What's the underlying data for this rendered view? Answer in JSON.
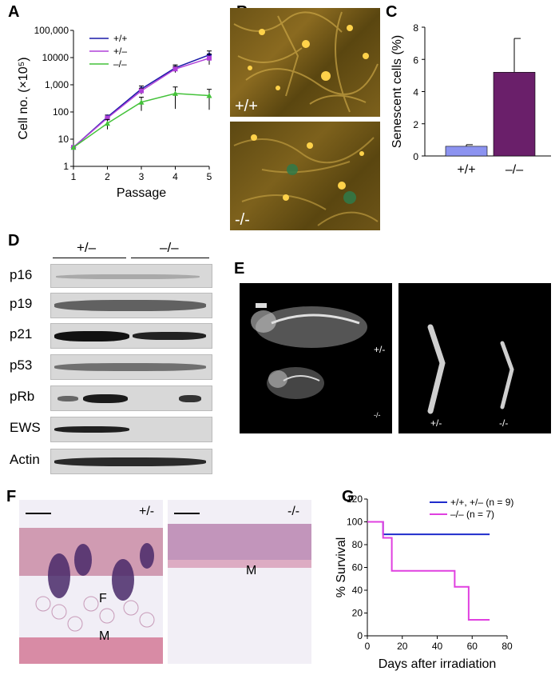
{
  "panels": {
    "A": "A",
    "B": "B",
    "C": "C",
    "D": "D",
    "E": "E",
    "F": "F",
    "G": "G"
  },
  "panel_b": {
    "top_label": "+/+",
    "bottom_label": "-/-"
  },
  "panel_d": {
    "group_labels": [
      "+/–",
      "–/–"
    ],
    "rows": [
      "p16",
      "p19",
      "p21",
      "p53",
      "pRb",
      "EWS",
      "Actin"
    ]
  },
  "panel_e": {
    "labels": [
      "+/-",
      "-/-",
      "+/-",
      "-/-"
    ]
  },
  "panel_f": {
    "left_genotype": "+/-",
    "right_genotype": "-/-",
    "left_marks": [
      "F",
      "M"
    ],
    "right_marks": [
      "M"
    ]
  },
  "colors": {
    "wt": "#1a1aa8",
    "het": "#b040d8",
    "ko": "#44c23a",
    "bar_wt": "#8c93f0",
    "bar_ko": "#6a1f6a",
    "survival_wt": "#1f2ccc",
    "survival_ko": "#e040e0"
  },
  "chart_data": [
    {
      "id": "A",
      "type": "line",
      "xlabel": "Passage",
      "ylabel": "Cell no. (×10⁵)",
      "y_scale": "log",
      "ylim": [
        1,
        100000
      ],
      "y_ticks": [
        "1",
        "10",
        "100",
        "1,000",
        "10000",
        "100,000"
      ],
      "x": [
        1,
        2,
        3,
        4,
        5
      ],
      "series": [
        {
          "name": "+/+",
          "values": [
            5,
            65,
            700,
            4200,
            12500
          ],
          "err": [
            0,
            12,
            200,
            1200,
            5000
          ]
        },
        {
          "name": "+/–",
          "values": [
            5,
            60,
            600,
            3800,
            9500
          ],
          "err": [
            0,
            10,
            150,
            1000,
            4000
          ]
        },
        {
          "name": "–/–",
          "values": [
            5,
            38,
            230,
            480,
            400
          ],
          "err": [
            0,
            15,
            120,
            350,
            280
          ]
        }
      ],
      "legend_position": "top-left"
    },
    {
      "id": "C",
      "type": "bar",
      "categories": [
        "+/+",
        "–/–"
      ],
      "values": [
        0.6,
        5.2
      ],
      "err": [
        0.1,
        2.1
      ],
      "ylabel": "Senescent cells (%)",
      "ylim": [
        0,
        8
      ],
      "y_ticks": [
        "0",
        "2",
        "4",
        "6",
        "8"
      ]
    },
    {
      "id": "G",
      "type": "line",
      "xlabel": "Days after irradiation",
      "ylabel": "% Survival",
      "xlim": [
        0,
        80
      ],
      "ylim": [
        0,
        120
      ],
      "x_ticks": [
        "0",
        "20",
        "40",
        "60",
        "80"
      ],
      "y_ticks": [
        "0",
        "20",
        "40",
        "60",
        "80",
        "100",
        "120"
      ],
      "series": [
        {
          "name": "+/+, +/– (n = 9)",
          "steps": [
            [
              0,
              100
            ],
            [
              9,
              100
            ],
            [
              9,
              89
            ],
            [
              70,
              89
            ]
          ]
        },
        {
          "name": "–/– (n = 7)",
          "steps": [
            [
              0,
              100
            ],
            [
              9,
              100
            ],
            [
              9,
              86
            ],
            [
              14,
              86
            ],
            [
              14,
              57
            ],
            [
              50,
              57
            ],
            [
              50,
              43
            ],
            [
              58,
              43
            ],
            [
              58,
              14
            ],
            [
              70,
              14
            ]
          ]
        }
      ],
      "legend_position": "top-right"
    }
  ]
}
